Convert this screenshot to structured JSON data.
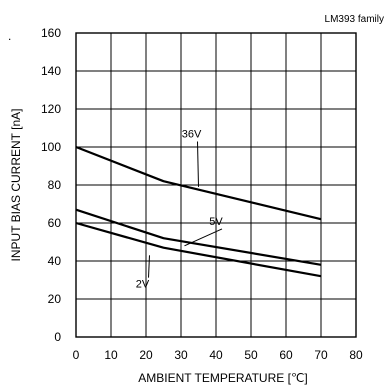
{
  "chart_data": {
    "type": "line",
    "title": "",
    "family_label": "LM393 family",
    "xlabel": "AMBIENT TEMPERATURE [℃]",
    "ylabel": "INPUT BIAS CURRENT [nA]",
    "xlim": [
      0,
      80
    ],
    "ylim": [
      0,
      160
    ],
    "x_ticks": [
      0,
      10,
      20,
      30,
      40,
      50,
      60,
      70,
      80
    ],
    "y_ticks": [
      0,
      20,
      40,
      60,
      80,
      100,
      120,
      140,
      160
    ],
    "grid": true,
    "series": [
      {
        "name": "36V",
        "x": [
          0,
          25,
          70
        ],
        "y": [
          100,
          82,
          62
        ]
      },
      {
        "name": "5V",
        "x": [
          0,
          25,
          70
        ],
        "y": [
          67,
          52,
          38
        ]
      },
      {
        "name": "2V",
        "x": [
          0,
          25,
          70
        ],
        "y": [
          60,
          47,
          32
        ]
      }
    ],
    "annotations": [
      {
        "text": "36V",
        "x": 33,
        "y": 105,
        "target": [
          35,
          79
        ]
      },
      {
        "text": "5V",
        "x": 40,
        "y": 59,
        "target": [
          31,
          48
        ]
      },
      {
        "text": "2V",
        "x": 19,
        "y": 26,
        "target": [
          21,
          43
        ]
      }
    ],
    "stray_mark": "."
  }
}
